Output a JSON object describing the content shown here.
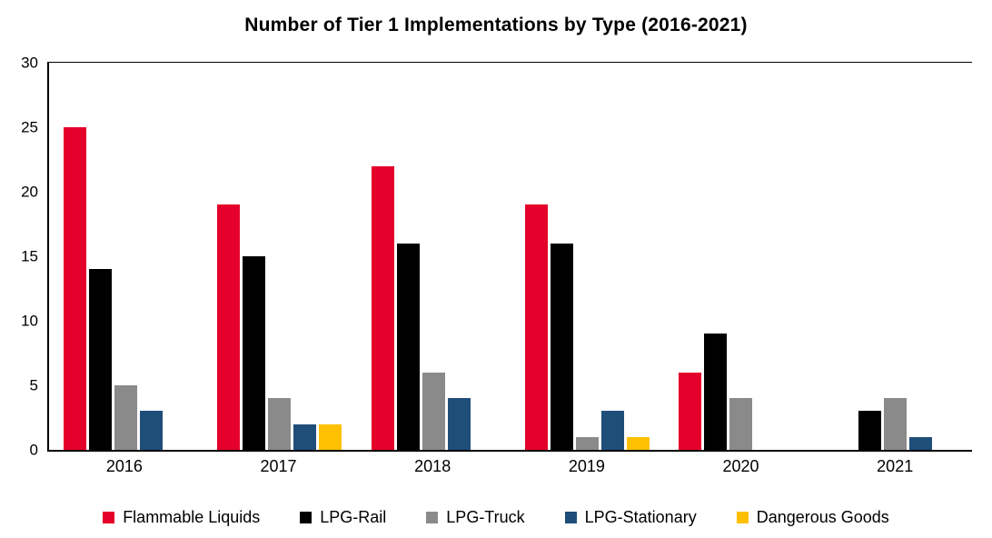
{
  "chart_data": {
    "type": "bar",
    "title": "Number of Tier 1 Implementations by Type (2016-2021)",
    "categories": [
      "2016",
      "2017",
      "2018",
      "2019",
      "2020",
      "2021"
    ],
    "series": [
      {
        "name": "Flammable Liquids",
        "color": "#E4002B",
        "values": [
          25,
          19,
          22,
          19,
          6,
          0
        ]
      },
      {
        "name": "LPG-Rail",
        "color": "#000000",
        "values": [
          14,
          15,
          16,
          16,
          9,
          3
        ]
      },
      {
        "name": "LPG-Truck",
        "color": "#8A8A8A",
        "values": [
          5,
          4,
          6,
          1,
          4,
          4
        ]
      },
      {
        "name": "LPG-Stationary",
        "color": "#1F4E79",
        "values": [
          3,
          2,
          4,
          3,
          0,
          1
        ]
      },
      {
        "name": "Dangerous Goods",
        "color": "#FFC000",
        "values": [
          0,
          2,
          0,
          1,
          0,
          0
        ]
      }
    ],
    "ylim": [
      0,
      30
    ],
    "yticks": [
      0,
      5,
      10,
      15,
      20,
      25,
      30
    ],
    "grid": false,
    "legend_position": "bottom"
  }
}
